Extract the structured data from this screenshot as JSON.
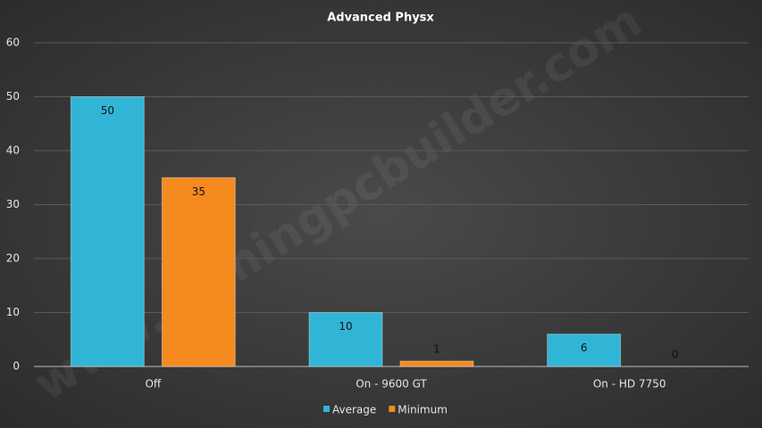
{
  "chart_data": {
    "type": "bar",
    "title": "Advanced Physx",
    "categories": [
      "Off",
      "On - 9600 GT",
      "On - HD 7750"
    ],
    "series": [
      {
        "name": "Average",
        "color": "#31b5d6",
        "values": [
          50,
          10,
          6
        ]
      },
      {
        "name": "Minimum",
        "color": "#f58a1f",
        "values": [
          35,
          1,
          0
        ]
      }
    ],
    "ylim": [
      0,
      60
    ],
    "yticks": [
      0,
      10,
      20,
      30,
      40,
      50,
      60
    ],
    "grid": true,
    "legend": "bottom",
    "watermark": "www.gamingpcbuilder.com"
  }
}
